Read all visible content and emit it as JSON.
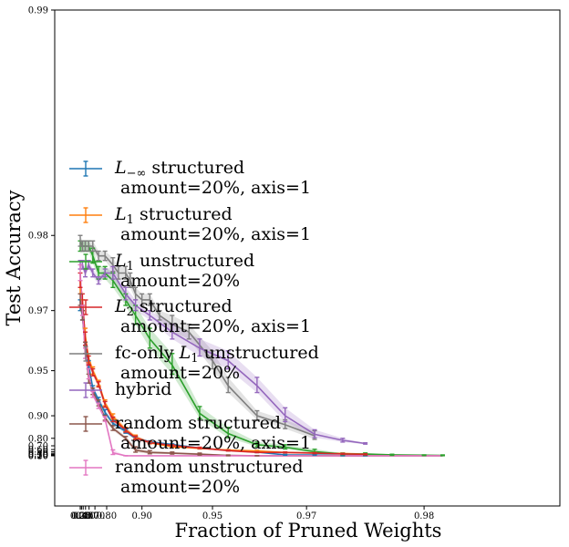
{
  "chart_data": {
    "type": "line",
    "xlabel": "Fraction of Pruned Weights",
    "ylabel": "Test Accuracy",
    "x_ticks": [
      "0.20",
      "0.30",
      "0.40",
      "0.50",
      "0.60",
      "0.70",
      "0.80",
      "0.90",
      "0.95",
      "0.97",
      "0.98"
    ],
    "y_ticks": [
      "0.10",
      "0.20",
      "0.30",
      "0.40",
      "0.50",
      "0.60",
      "0.70",
      "0.80",
      "0.90",
      "0.95",
      "0.97",
      "0.98",
      "0.99"
    ],
    "x_scale": "reciprocal (1/(1-x))",
    "y_scale": "reciprocal (1/(1-y))",
    "xlim": [
      0.2,
      0.985
    ],
    "ylim": [
      0.1,
      0.99
    ],
    "grid": false,
    "legend_position": "left",
    "series": [
      {
        "name": "L_{-inf} structured\n amount=20%, axis=1",
        "color": "#1f77b4",
        "x": [
          0.2,
          0.36,
          0.49,
          0.59,
          0.67,
          0.74,
          0.79,
          0.83,
          0.87,
          0.89,
          0.91,
          0.93,
          0.945,
          0.955,
          0.962,
          0.967,
          0.971,
          0.974,
          0.976
        ],
        "y": [
          0.971,
          0.969,
          0.96,
          0.953,
          0.938,
          0.926,
          0.907,
          0.88,
          0.847,
          0.8,
          0.765,
          0.725,
          0.65,
          0.57,
          0.48,
          0.25,
          0.23,
          0.13,
          0.12
        ],
        "err": [
          0.001,
          0.001,
          0.002,
          0.002,
          0.002,
          0.003,
          0.005,
          0.008,
          0.01,
          0.015,
          0.01,
          0.01,
          0.015,
          0.02,
          0.03,
          0.05,
          0.04,
          0.02,
          0.01
        ]
      },
      {
        "name": "L_1 structured\n amount=20%, axis=1",
        "color": "#ff7f0e",
        "x": [
          0.2,
          0.36,
          0.49,
          0.59,
          0.67,
          0.74,
          0.79,
          0.83,
          0.87,
          0.89,
          0.91,
          0.93,
          0.945,
          0.955,
          0.962,
          0.967,
          0.971,
          0.974,
          0.976
        ],
        "y": [
          0.974,
          0.971,
          0.964,
          0.956,
          0.95,
          0.942,
          0.922,
          0.898,
          0.855,
          0.81,
          0.75,
          0.68,
          0.64,
          0.58,
          0.54,
          0.46,
          0.43,
          0.39,
          0.34
        ],
        "err": [
          0.001,
          0.001,
          0.002,
          0.002,
          0.002,
          0.002,
          0.004,
          0.006,
          0.01,
          0.015,
          0.015,
          0.02,
          0.02,
          0.02,
          0.03,
          0.03,
          0.03,
          0.03,
          0.05
        ]
      },
      {
        "name": "L_1 unstructured\n amount=20%",
        "color": "#2ca02c",
        "x": [
          0.2,
          0.36,
          0.49,
          0.59,
          0.67,
          0.74,
          0.79,
          0.83,
          0.87,
          0.89,
          0.91,
          0.93,
          0.945,
          0.955,
          0.962,
          0.967,
          0.971,
          0.974,
          0.976,
          0.978,
          0.98,
          0.981
        ],
        "y": [
          0.979,
          0.979,
          0.979,
          0.979,
          0.978,
          0.976,
          0.976,
          0.975,
          0.972,
          0.969,
          0.963,
          0.953,
          0.905,
          0.835,
          0.72,
          0.67,
          0.51,
          0.34,
          0.33,
          0.25,
          0.2,
          0.18
        ],
        "err": [
          0.0005,
          0.0005,
          0.0005,
          0.0005,
          0.0008,
          0.0008,
          0.0008,
          0.001,
          0.001,
          0.002,
          0.003,
          0.005,
          0.012,
          0.03,
          0.04,
          0.05,
          0.1,
          0.08,
          0.1,
          0.07,
          0.05,
          0.06
        ]
      },
      {
        "name": "L_2 structured\n amount=20%, axis=1",
        "color": "#d62728",
        "x": [
          0.2,
          0.36,
          0.49,
          0.59,
          0.67,
          0.74,
          0.79,
          0.83,
          0.87,
          0.89,
          0.91,
          0.93,
          0.945,
          0.955,
          0.962,
          0.967,
          0.971,
          0.974,
          0.976
        ],
        "y": [
          0.975,
          0.972,
          0.963,
          0.955,
          0.949,
          0.941,
          0.92,
          0.891,
          0.853,
          0.803,
          0.755,
          0.705,
          0.65,
          0.56,
          0.47,
          0.46,
          0.41,
          0.35,
          0.3
        ],
        "err": [
          0.001,
          0.001,
          0.002,
          0.002,
          0.002,
          0.002,
          0.004,
          0.006,
          0.01,
          0.015,
          0.015,
          0.015,
          0.02,
          0.02,
          0.02,
          0.03,
          0.04,
          0.05,
          0.06
        ]
      },
      {
        "name": "fc-only L_1 unstructured\n amount=20%",
        "color": "#7f7f7f",
        "x": [
          0.2,
          0.36,
          0.49,
          0.59,
          0.67,
          0.74,
          0.79,
          0.83,
          0.85,
          0.87,
          0.88,
          0.89,
          0.9,
          0.91,
          0.92,
          0.93,
          0.94,
          0.95,
          0.955,
          0.962,
          0.967,
          0.971
        ],
        "y": [
          0.9795,
          0.979,
          0.979,
          0.979,
          0.979,
          0.978,
          0.978,
          0.977,
          0.976,
          0.976,
          0.975,
          0.973,
          0.972,
          0.972,
          0.969,
          0.967,
          0.965,
          0.955,
          0.94,
          0.9,
          0.875,
          0.82
        ],
        "err": [
          0.0005,
          0.0005,
          0.0005,
          0.0005,
          0.0005,
          0.0005,
          0.0005,
          0.0008,
          0.0008,
          0.0008,
          0.001,
          0.001,
          0.001,
          0.001,
          0.001,
          0.002,
          0.002,
          0.004,
          0.006,
          0.01,
          0.015,
          0.03
        ]
      },
      {
        "name": "hybrid",
        "color": "#9467bd",
        "x": [
          0.2,
          0.36,
          0.49,
          0.59,
          0.67,
          0.74,
          0.79,
          0.83,
          0.87,
          0.89,
          0.91,
          0.93,
          0.945,
          0.955,
          0.962,
          0.967,
          0.971,
          0.974,
          0.976
        ],
        "y": [
          0.977,
          0.977,
          0.976,
          0.977,
          0.976,
          0.975,
          0.976,
          0.976,
          0.973,
          0.971,
          0.969,
          0.965,
          0.96,
          0.955,
          0.94,
          0.9,
          0.83,
          0.78,
          0.74
        ],
        "err": [
          0.0005,
          0.0005,
          0.0005,
          0.0005,
          0.0005,
          0.0005,
          0.0005,
          0.0008,
          0.001,
          0.001,
          0.001,
          0.002,
          0.003,
          0.004,
          0.006,
          0.015,
          0.025,
          0.02,
          0.01
        ]
      },
      {
        "name": "random structured\n amount=20%, axis=1",
        "color": "#8c564b",
        "x": [
          0.2,
          0.36,
          0.49,
          0.59,
          0.67,
          0.74,
          0.79,
          0.83,
          0.87,
          0.89,
          0.91,
          0.93,
          0.945,
          0.955,
          0.962,
          0.967,
          0.971,
          0.974,
          0.976,
          0.978,
          0.98,
          0.981
        ],
        "y": [
          0.972,
          0.969,
          0.96,
          0.945,
          0.935,
          0.922,
          0.895,
          0.862,
          0.8,
          0.58,
          0.46,
          0.41,
          0.32,
          0.18,
          0.12,
          0.11,
          0.11,
          0.11,
          0.11,
          0.11,
          0.11,
          0.11
        ],
        "err": [
          0.001,
          0.001,
          0.002,
          0.003,
          0.003,
          0.004,
          0.006,
          0.01,
          0.015,
          0.1,
          0.1,
          0.08,
          0.1,
          0.06,
          0.01,
          0.0,
          0.0,
          0.0,
          0.0,
          0.0,
          0.0,
          0.0
        ]
      },
      {
        "name": "random unstructured\n amount=20%",
        "color": "#e377c2",
        "x": [
          0.2,
          0.36,
          0.49,
          0.59,
          0.67,
          0.74,
          0.79,
          0.83,
          0.87,
          0.89,
          0.91,
          0.93,
          0.945,
          0.955,
          0.962,
          0.967,
          0.971,
          0.974,
          0.976,
          0.978,
          0.98,
          0.981
        ],
        "y": [
          0.976,
          0.97,
          0.958,
          0.948,
          0.932,
          0.918,
          0.892,
          0.44,
          0.12,
          0.11,
          0.11,
          0.11,
          0.11,
          0.11,
          0.11,
          0.11,
          0.11,
          0.11,
          0.11,
          0.11,
          0.11,
          0.11
        ],
        "err": [
          0.001,
          0.001,
          0.002,
          0.003,
          0.003,
          0.004,
          0.006,
          0.15,
          0.02,
          0.0,
          0.0,
          0.0,
          0.0,
          0.0,
          0.0,
          0.0,
          0.0,
          0.0,
          0.0,
          0.0,
          0.0,
          0.0
        ]
      }
    ],
    "legend": [
      {
        "main": "L",
        "sub": "−∞",
        "rest": " structured",
        "line2": " amount=20%, axis=1"
      },
      {
        "main": "L",
        "sub": "1",
        "rest": " structured",
        "line2": " amount=20%, axis=1"
      },
      {
        "main": "L",
        "sub": "1",
        "rest": " unstructured",
        "line2": " amount=20%"
      },
      {
        "main": "L",
        "sub": "2",
        "rest": " structured",
        "line2": " amount=20%, axis=1"
      },
      {
        "pre": "fc-only ",
        "main": "L",
        "sub": "1",
        "rest": " unstructured",
        "line2": " amount=20%"
      },
      {
        "pre": "hybrid",
        "line2": ""
      },
      {
        "pre": "random structured",
        "line2": " amount=20%, axis=1"
      },
      {
        "pre": "random unstructured",
        "line2": " amount=20%"
      }
    ]
  }
}
